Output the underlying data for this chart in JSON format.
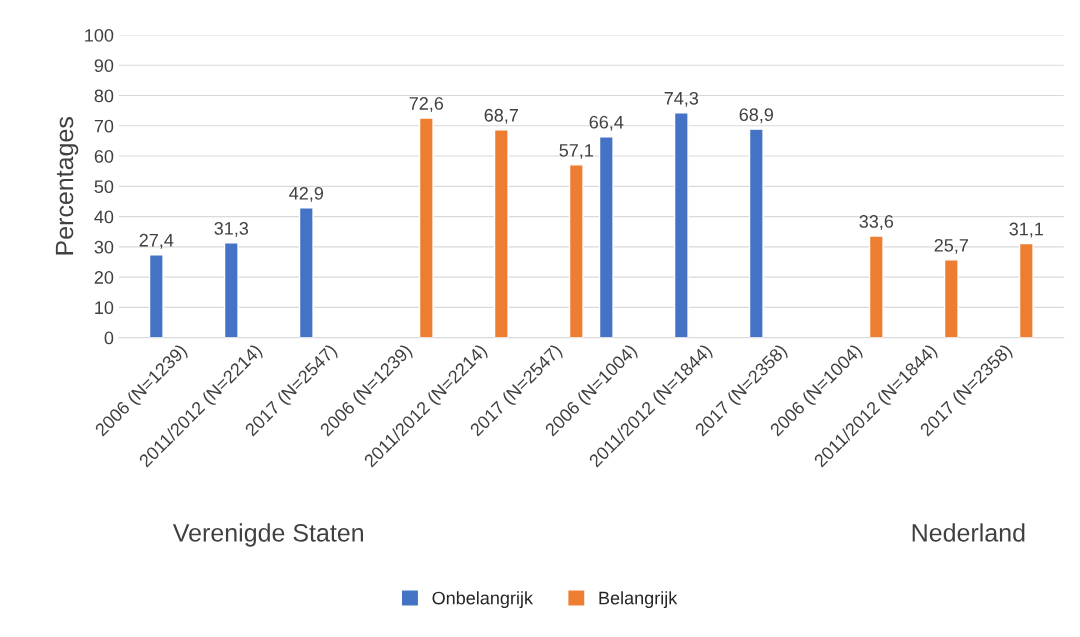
{
  "chart_data": {
    "type": "bar",
    "ylabel": "Percentages",
    "categories": [
      "2006 (N=1239)",
      "2011/2012 (N=2214)",
      "2017 (N=2547)",
      "2006 (N=1239)",
      "2011/2012 (N=2214)",
      "2017 (N=2547)",
      "2006 (N=1004)",
      "2011/2012 (N=1844)",
      "2017 (N=2358)",
      "2006 (N=1004)",
      "2011/2012 (N=1844)",
      "2017 (N=2358)"
    ],
    "series": [
      {
        "name": "Onbelangrijk",
        "color": "#4472c4",
        "values": [
          27.4,
          31.3,
          42.9,
          null,
          null,
          null,
          66.4,
          74.3,
          68.9,
          null,
          null,
          null
        ],
        "value_labels": [
          "27,4",
          "31,3",
          "42,9",
          null,
          null,
          null,
          "66,4",
          "74,3",
          "68,9",
          null,
          null,
          null
        ]
      },
      {
        "name": "Belangrijk",
        "color": "#ed7d31",
        "values": [
          null,
          null,
          null,
          72.6,
          68.7,
          57.1,
          null,
          null,
          null,
          33.6,
          25.7,
          31.1
        ],
        "value_labels": [
          null,
          null,
          null,
          "72,6",
          "68,7",
          "57,1",
          null,
          null,
          null,
          "33,6",
          "25,7",
          "31,1"
        ]
      }
    ],
    "ylim": [
      0,
      100
    ],
    "yticks": [
      0,
      10,
      20,
      30,
      40,
      50,
      60,
      70,
      80,
      90,
      100
    ],
    "grid": "y",
    "legend": "bottom",
    "annotations": [
      "Verenigde Staten",
      "Nederland"
    ]
  }
}
